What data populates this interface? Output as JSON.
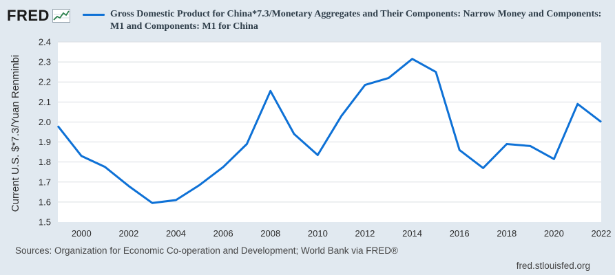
{
  "header": {
    "logo_text": "FRED",
    "logo_icon": "trend-graph-icon"
  },
  "legend": {
    "label": "Gross Domestic Product for China*7.3/Monetary Aggregates and Their Components: Narrow Money and Components: M1 and Components: M1 for China",
    "color": "#0e71d6"
  },
  "footer": {
    "sources": "Sources: Organization for Economic Co-operation and Development; World Bank via FRED®",
    "site": "fred.stlouisfed.org"
  },
  "colors": {
    "background": "#e1e9f0",
    "plot_background": "#ffffff",
    "gridline": "#d9dde2",
    "series": "#0e71d6"
  },
  "chart_data": {
    "type": "line",
    "ylabel": "Current U.S. $*7.3/Yuan Renminbi",
    "xlabel": "",
    "grid": true,
    "legend_position": "top",
    "xlim": [
      1999,
      2022
    ],
    "ylim": [
      1.5,
      2.4
    ],
    "x_ticks": [
      "2000",
      "2002",
      "2004",
      "2006",
      "2008",
      "2010",
      "2012",
      "2014",
      "2016",
      "2018",
      "2020",
      "2022"
    ],
    "y_ticks": [
      "1.5",
      "1.6",
      "1.7",
      "1.8",
      "1.9",
      "2.0",
      "2.1",
      "2.2",
      "2.3",
      "2.4"
    ],
    "series": [
      {
        "name": "Gross Domestic Product for China*7.3/Monetary Aggregates and Their Components: Narrow Money and Components: M1 and Components: M1 for China",
        "x": [
          1999,
          2000,
          2001,
          2002,
          2003,
          2004,
          2005,
          2006,
          2007,
          2008,
          2009,
          2010,
          2011,
          2012,
          2013,
          2014,
          2015,
          2016,
          2017,
          2018,
          2019,
          2020,
          2021,
          2022
        ],
        "values": [
          1.98,
          1.83,
          1.775,
          1.68,
          1.595,
          1.61,
          1.685,
          1.775,
          1.89,
          2.155,
          1.94,
          1.835,
          2.03,
          2.185,
          2.22,
          2.315,
          2.25,
          1.86,
          1.77,
          1.89,
          1.88,
          1.815,
          2.09,
          2.0
        ]
      }
    ]
  }
}
